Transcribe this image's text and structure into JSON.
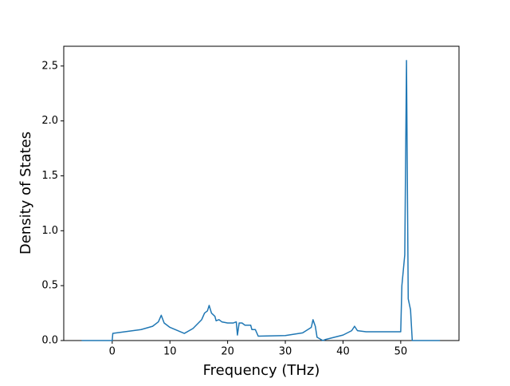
{
  "chart_data": {
    "type": "line",
    "xlabel": "Frequency (THz)",
    "ylabel": "Density of States",
    "x": [
      -5.3,
      0,
      0.1,
      5,
      7,
      8,
      8.5,
      9,
      10,
      12.5,
      14,
      15.5,
      16,
      16.5,
      16.8,
      17.2,
      17.8,
      18,
      18.5,
      19,
      20,
      21,
      21.5,
      21.7,
      22,
      22.5,
      23,
      24,
      24.2,
      24.8,
      25.3,
      30,
      33,
      34.5,
      34.8,
      35.2,
      35.5,
      36.5,
      37,
      40,
      41.5,
      42,
      42.5,
      44,
      50,
      50.2,
      50.7,
      51,
      51.3,
      51.7,
      52,
      56.8
    ],
    "series": [
      {
        "color": "#1f77b4",
        "values": [
          0,
          0,
          0.065,
          0.1,
          0.13,
          0.17,
          0.23,
          0.16,
          0.12,
          0.065,
          0.11,
          0.19,
          0.25,
          0.27,
          0.32,
          0.25,
          0.22,
          0.18,
          0.19,
          0.17,
          0.16,
          0.16,
          0.17,
          0.05,
          0.16,
          0.16,
          0.14,
          0.14,
          0.1,
          0.1,
          0.04,
          0.045,
          0.07,
          0.12,
          0.19,
          0.13,
          0.03,
          0.0,
          0.01,
          0.05,
          0.09,
          0.13,
          0.09,
          0.08,
          0.08,
          0.5,
          0.78,
          2.55,
          0.38,
          0.28,
          0,
          0
        ]
      }
    ],
    "xlim": [
      -8.4,
      60.1
    ],
    "ylim": [
      0,
      2.68
    ],
    "xticks": [
      0,
      10,
      20,
      30,
      40,
      50
    ],
    "yticks": [
      {
        "value": 0,
        "label": "0.0"
      },
      {
        "value": 0.5,
        "label": "0.5"
      },
      {
        "value": 1,
        "label": "1.0"
      },
      {
        "value": 1.5,
        "label": "1.5"
      },
      {
        "value": 2,
        "label": "2.0"
      },
      {
        "value": 2.5,
        "label": "2.5"
      }
    ]
  }
}
